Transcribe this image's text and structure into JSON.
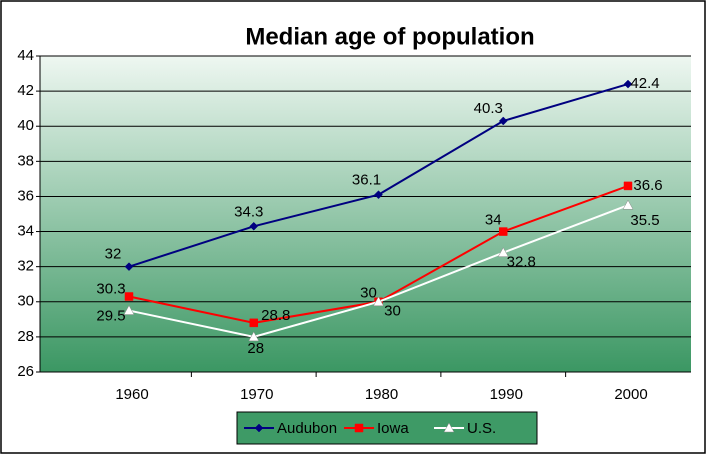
{
  "chart_data": {
    "type": "line",
    "title": "Median age of population",
    "categories": [
      "1960",
      "1970",
      "1980",
      "1990",
      "2000"
    ],
    "series": [
      {
        "name": "Audubon",
        "color": "#000080",
        "marker": "diamond",
        "values": [
          32,
          34.3,
          36.1,
          40.3,
          42.4
        ]
      },
      {
        "name": "Iowa",
        "color": "#ff0000",
        "marker": "square",
        "values": [
          30.3,
          28.8,
          30,
          34,
          36.6
        ]
      },
      {
        "name": "U.S.",
        "color": "#ffffff",
        "marker": "triangle",
        "values": [
          29.5,
          28,
          30,
          32.8,
          35.5
        ]
      }
    ],
    "ylim": [
      26,
      44
    ],
    "yticks": [
      26,
      28,
      30,
      32,
      34,
      36,
      38,
      40,
      42,
      44
    ],
    "grid": true,
    "legend": "bottom"
  }
}
